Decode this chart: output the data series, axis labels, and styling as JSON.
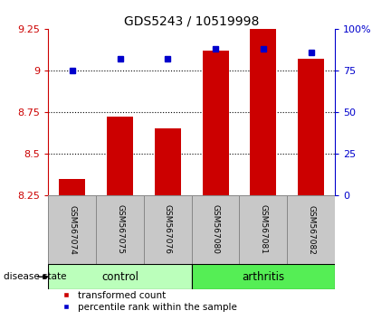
{
  "title": "GDS5243 / 10519998",
  "samples": [
    "GSM567074",
    "GSM567075",
    "GSM567076",
    "GSM567080",
    "GSM567081",
    "GSM567082"
  ],
  "bar_values": [
    8.35,
    8.72,
    8.65,
    9.12,
    9.255,
    9.07
  ],
  "bar_base": 8.25,
  "percentile_values": [
    75,
    82,
    82,
    88,
    88,
    86
  ],
  "bar_color": "#cc0000",
  "blue_color": "#0000cc",
  "ylim_left": [
    8.25,
    9.25
  ],
  "ylim_right": [
    0,
    100
  ],
  "yticks_left": [
    8.25,
    8.5,
    8.75,
    9.0,
    9.25
  ],
  "yticks_right": [
    0,
    25,
    50,
    75,
    100
  ],
  "ytick_labels_left": [
    "8.25",
    "8.5",
    "8.75",
    "9",
    "9.25"
  ],
  "ytick_labels_right": [
    "0",
    "25",
    "50",
    "75",
    "100%"
  ],
  "gridlines": [
    8.5,
    8.75,
    9.0
  ],
  "control_label": "control",
  "arthritis_label": "arthritis",
  "control_color": "#bbffbb",
  "arthritis_color": "#55ee55",
  "group_label": "disease state",
  "legend_red_label": "transformed count",
  "legend_blue_label": "percentile rank within the sample",
  "bar_width": 0.55,
  "plot_bg_color": "#ffffff",
  "tick_area_bg": "#c8c8c8",
  "title_fontsize": 10
}
